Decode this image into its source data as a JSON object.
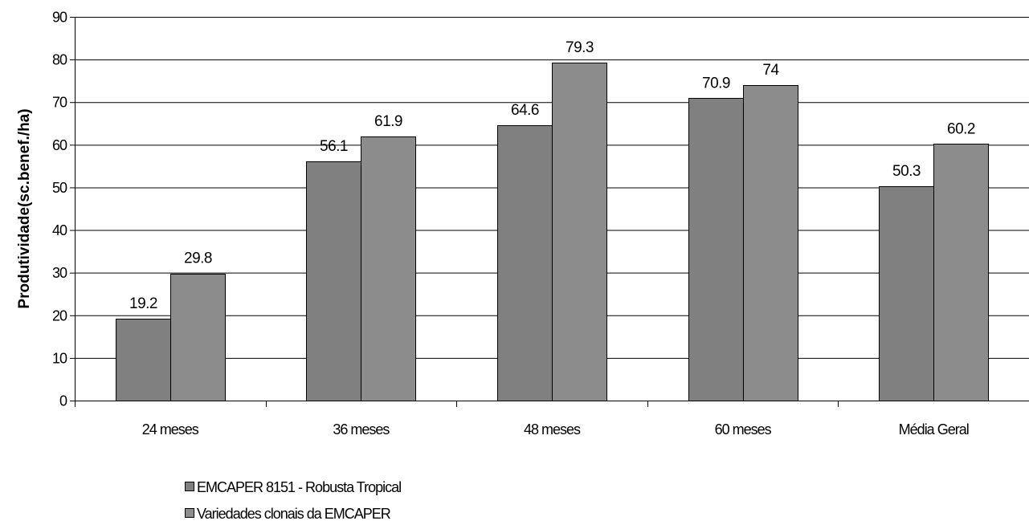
{
  "chart_data": {
    "type": "bar",
    "title": "",
    "xlabel": "",
    "ylabel": "Produtividade(sc.benef./ha)",
    "ylim": [
      0,
      90
    ],
    "yticks": [
      0,
      10,
      20,
      30,
      40,
      50,
      60,
      70,
      80,
      90
    ],
    "grid": true,
    "legend_position": "bottom-left",
    "categories": [
      "24 meses",
      "36 meses",
      "48 meses",
      "60 meses",
      "Média Geral"
    ],
    "series": [
      {
        "name": "EMCAPER 8151 - Robusta Tropical",
        "values": [
          19.2,
          56.1,
          64.6,
          70.9,
          50.3
        ],
        "color": "#808080"
      },
      {
        "name": "Variedades clonais da EMCAPER",
        "values": [
          29.8,
          61.9,
          79.3,
          74,
          60.2
        ],
        "color": "#8c8c8c"
      }
    ]
  }
}
